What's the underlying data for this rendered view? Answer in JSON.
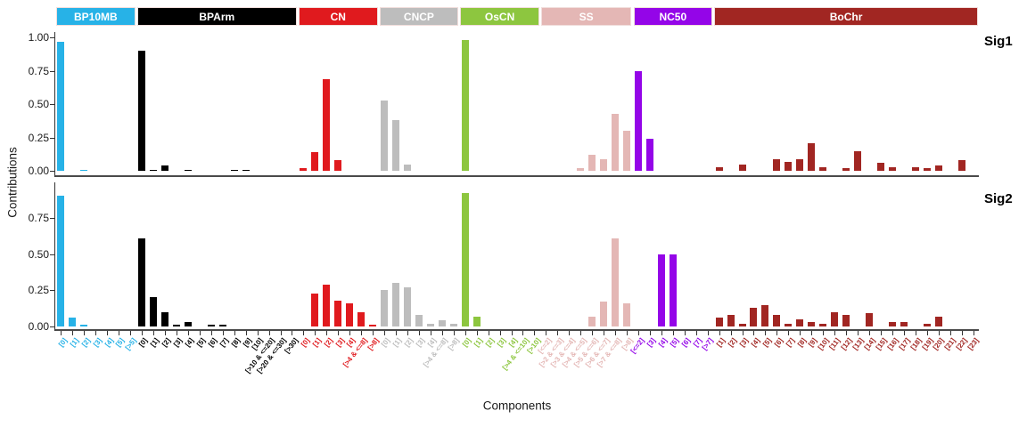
{
  "chart_data": {
    "type": "bar",
    "title": "",
    "xlabel": "Components",
    "ylabel": "Contributions",
    "facet_labels": [
      "Sig1",
      "Sig2"
    ],
    "legend_position": "none",
    "grid": false,
    "y_axis": {
      "sig1_ticks": [
        "1.00",
        "0.75",
        "0.50",
        "0.25",
        "0.00"
      ],
      "sig2_ticks": [
        "0.75",
        "0.50",
        "0.25",
        "0.00"
      ],
      "sig1_range": [
        0,
        1.0
      ],
      "sig2_range": [
        0,
        0.95
      ]
    },
    "groups": [
      {
        "name": "BP10MB",
        "color": "#27b2e7",
        "categories": [
          "[0]",
          "[1]",
          "[2]",
          "[3]",
          "[4]",
          "[5]",
          "[>5]"
        ],
        "sig1": [
          0.97,
          0,
          0.005,
          0,
          0,
          0,
          0
        ],
        "sig2": [
          0.9,
          0.06,
          0.01,
          0,
          0,
          0,
          0
        ]
      },
      {
        "name": "BPArm",
        "color": "#000000",
        "categories": [
          "[0]",
          "[1]",
          "[2]",
          "[3]",
          "[4]",
          "[5]",
          "[6]",
          "[7]",
          "[8]",
          "[9]",
          "[10]",
          "[>10 & <=20]",
          "[>20 & <=30]",
          "[>30]"
        ],
        "sig1": [
          0.9,
          0.01,
          0.04,
          0,
          0.01,
          0,
          0,
          0,
          0.005,
          0.005,
          0,
          0,
          0,
          0
        ],
        "sig2": [
          0.61,
          0.2,
          0.1,
          0.01,
          0.03,
          0,
          0.01,
          0.015,
          0,
          0,
          0,
          0,
          0,
          0
        ]
      },
      {
        "name": "CN",
        "color": "#e01a1e",
        "categories": [
          "[0]",
          "[1]",
          "[2]",
          "[3]",
          "[4]",
          "[>4 & <=8]",
          "[>8]"
        ],
        "sig1": [
          0.02,
          0.14,
          0.69,
          0.08,
          0,
          0,
          0
        ],
        "sig2": [
          0,
          0.23,
          0.29,
          0.18,
          0.16,
          0.1,
          0.01
        ]
      },
      {
        "name": "CNCP",
        "color": "#bdbdbd",
        "categories": [
          "[0]",
          "[1]",
          "[2]",
          "[3]",
          "[4]",
          "[>4 & <=8]",
          "[>8]"
        ],
        "sig1": [
          0.53,
          0.38,
          0.05,
          0,
          0,
          0,
          0
        ],
        "sig2": [
          0.25,
          0.3,
          0.27,
          0.08,
          0.02,
          0.04,
          0.02
        ]
      },
      {
        "name": "OsCN",
        "color": "#8dc63f",
        "categories": [
          "[0]",
          "[1]",
          "[2]",
          "[3]",
          "[4]",
          "[>4 & <=10]",
          "[>10]"
        ],
        "sig1": [
          0.98,
          0,
          0,
          0,
          0,
          0,
          0
        ],
        "sig2": [
          0.92,
          0.07,
          0,
          0,
          0,
          0,
          0
        ]
      },
      {
        "name": "SS",
        "color": "#e4b7b5",
        "categories": [
          "[<=2]",
          "[>2 & <=3]",
          "[>3 & <=4]",
          "[>4 & <=5]",
          "[>5 & <=6]",
          "[>6 & <=7]",
          "[>7 & <=8]",
          "[>8]"
        ],
        "sig1": [
          0,
          0,
          0,
          0.02,
          0.12,
          0.09,
          0.43,
          0.3
        ],
        "sig2": [
          0,
          0,
          0,
          0,
          0.07,
          0.17,
          0.61,
          0.16
        ]
      },
      {
        "name": "NC50",
        "color": "#9405e8",
        "categories": [
          "[<=2]",
          "[3]",
          "[4]",
          "[5]",
          "[6]",
          "[7]",
          "[>7]"
        ],
        "sig1": [
          0.75,
          0.24,
          0,
          0,
          0,
          0,
          0
        ],
        "sig2": [
          0,
          0,
          0.5,
          0.5,
          0,
          0,
          0
        ]
      },
      {
        "name": "BoChr",
        "color": "#a12622",
        "categories": [
          "[1]",
          "[2]",
          "[3]",
          "[4]",
          "[5]",
          "[6]",
          "[7]",
          "[8]",
          "[9]",
          "[10]",
          "[11]",
          "[12]",
          "[13]",
          "[14]",
          "[15]",
          "[16]",
          "[17]",
          "[18]",
          "[19]",
          "[20]",
          "[21]",
          "[22]",
          "[23]"
        ],
        "sig1": [
          0.03,
          0,
          0.05,
          0,
          0,
          0.09,
          0.07,
          0.09,
          0.21,
          0.03,
          0,
          0.02,
          0.15,
          0,
          0.06,
          0.03,
          0,
          0.03,
          0.02,
          0.04,
          0,
          0.08,
          0
        ],
        "sig2": [
          0.06,
          0.08,
          0.02,
          0.13,
          0.15,
          0.08,
          0.02,
          0.05,
          0.03,
          0.02,
          0.1,
          0.08,
          0,
          0.09,
          0,
          0.03,
          0.03,
          0,
          0.02,
          0.07,
          0,
          0,
          0
        ]
      }
    ]
  }
}
